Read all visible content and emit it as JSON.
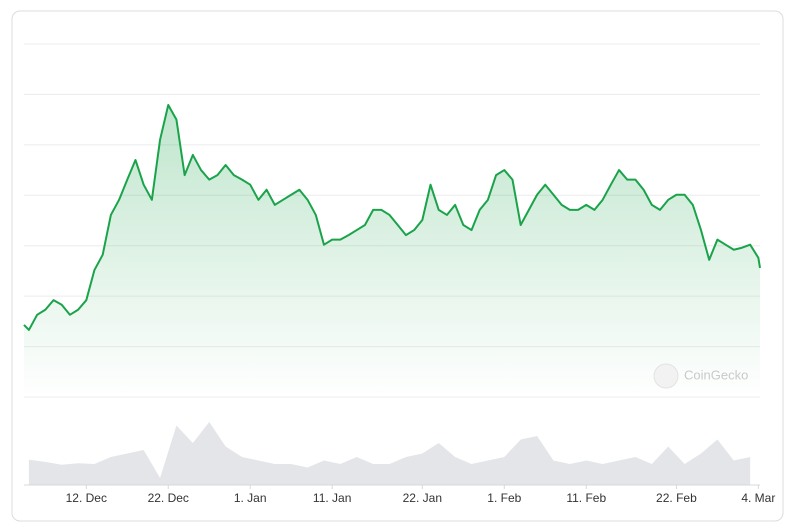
{
  "chart_data": {
    "type": "line",
    "x": [
      4.4,
      5,
      6,
      7,
      8,
      9,
      10,
      11,
      12,
      13,
      14,
      15,
      16,
      17,
      18,
      19,
      20,
      21,
      22,
      23,
      24,
      25,
      26,
      27,
      28,
      29,
      30,
      31,
      32,
      33,
      34,
      35,
      36,
      37,
      38,
      39,
      40,
      41,
      42,
      43,
      44,
      45,
      46,
      47,
      48,
      49,
      50,
      51,
      52,
      53,
      54,
      55,
      56,
      57,
      58,
      59,
      60,
      61,
      62,
      63,
      64,
      65,
      66,
      67,
      68,
      69,
      70,
      71,
      72,
      73,
      74,
      75,
      76,
      77,
      78,
      79,
      80,
      81,
      82,
      83,
      84,
      85,
      86,
      87,
      88,
      89,
      90,
      91,
      92,
      93,
      94,
      94.2
    ],
    "values": [
      1.43,
      1.33,
      1.63,
      1.73,
      1.92,
      1.83,
      1.63,
      1.73,
      1.92,
      2.52,
      2.82,
      3.61,
      3.91,
      4.31,
      4.7,
      4.21,
      3.91,
      5.1,
      5.79,
      5.5,
      4.4,
      4.8,
      4.5,
      4.31,
      4.4,
      4.6,
      4.4,
      4.31,
      4.21,
      3.91,
      4.11,
      3.81,
      3.91,
      4.01,
      4.11,
      3.91,
      3.61,
      3.02,
      3.12,
      3.12,
      3.21,
      3.31,
      3.41,
      3.71,
      3.71,
      3.61,
      3.41,
      3.21,
      3.31,
      3.51,
      4.21,
      3.71,
      3.61,
      3.81,
      3.41,
      3.31,
      3.71,
      3.91,
      4.4,
      4.5,
      4.31,
      3.41,
      3.71,
      4.01,
      4.21,
      4.01,
      3.81,
      3.71,
      3.71,
      3.81,
      3.71,
      3.91,
      4.21,
      4.5,
      4.31,
      4.31,
      4.11,
      3.81,
      3.71,
      3.91,
      4.01,
      4.01,
      3.81,
      3.31,
      2.72,
      3.12,
      3.02,
      2.92,
      2.96,
      3.02,
      2.76,
      2.56
    ],
    "color": "#1aa34a",
    "xlim": [
      4.4,
      94.2
    ],
    "xticks": [
      {
        "value": 12,
        "label": "12. Dec"
      },
      {
        "value": 22,
        "label": "22. Dec"
      },
      {
        "value": 32,
        "label": "1. Jan"
      },
      {
        "value": 42,
        "label": "11. Jan"
      },
      {
        "value": 53,
        "label": "22. Jan"
      },
      {
        "value": 63,
        "label": "1. Feb"
      },
      {
        "value": 73,
        "label": "11. Feb"
      },
      {
        "value": 84,
        "label": "22. Feb"
      },
      {
        "value": 94,
        "label": "4. Mar"
      }
    ],
    "ylim": [
      0,
      7
    ],
    "yticks": [
      0,
      1,
      2,
      3,
      4,
      5,
      6,
      7
    ],
    "ytick_labels": false,
    "grid": true,
    "volume": {
      "x": [
        5,
        7,
        9,
        11,
        13,
        15,
        17,
        19,
        21,
        23,
        25,
        27,
        29,
        31,
        33,
        35,
        37,
        39,
        41,
        43,
        45,
        47,
        49,
        51,
        53,
        55,
        57,
        59,
        61,
        63,
        65,
        67,
        69,
        71,
        73,
        75,
        77,
        79,
        81,
        83,
        85,
        87,
        89,
        91,
        93
      ],
      "values": [
        0.36,
        0.33,
        0.29,
        0.31,
        0.3,
        0.4,
        0.45,
        0.5,
        0.1,
        0.85,
        0.6,
        0.9,
        0.55,
        0.4,
        0.35,
        0.3,
        0.3,
        0.25,
        0.35,
        0.3,
        0.4,
        0.3,
        0.3,
        0.4,
        0.45,
        0.6,
        0.4,
        0.3,
        0.35,
        0.4,
        0.65,
        0.7,
        0.35,
        0.3,
        0.35,
        0.3,
        0.35,
        0.4,
        0.3,
        0.55,
        0.3,
        0.45,
        0.65,
        0.35,
        0.4
      ],
      "ylim": [
        0,
        1
      ],
      "color": "#e3e5e8"
    },
    "watermark": "CoinGecko"
  }
}
